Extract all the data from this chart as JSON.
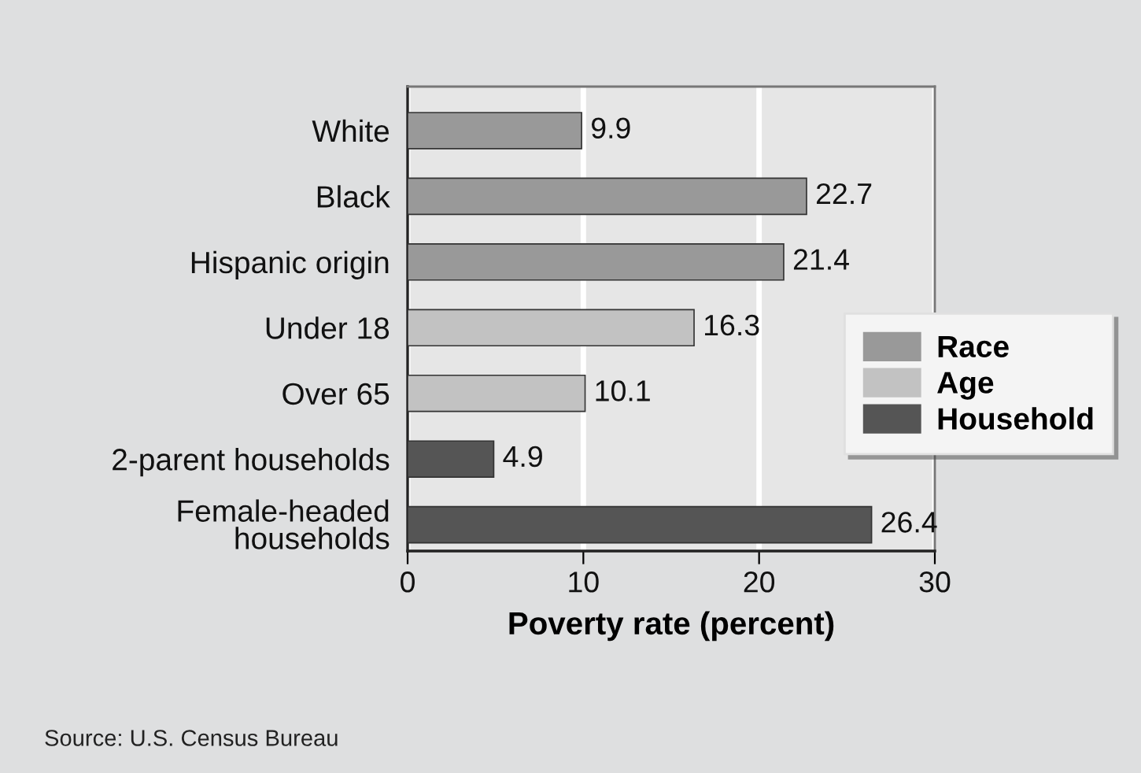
{
  "chart_data": {
    "type": "bar",
    "orientation": "horizontal",
    "categories": [
      "White",
      "Black",
      "Hispanic origin",
      "Under 18",
      "Over 65",
      "2-parent households",
      "Female-headed\nhouseholds"
    ],
    "series": [
      {
        "name": "Race",
        "color": "#999999",
        "values": [
          9.9,
          22.7,
          21.4,
          null,
          null,
          null,
          null
        ]
      },
      {
        "name": "Age",
        "color": "#c2c2c2",
        "values": [
          null,
          null,
          null,
          16.3,
          10.1,
          null,
          null
        ]
      },
      {
        "name": "Household",
        "color": "#555555",
        "values": [
          null,
          null,
          null,
          null,
          null,
          4.9,
          26.4
        ]
      }
    ],
    "xlabel": "Poverty rate (percent)",
    "xlim": [
      0,
      30
    ],
    "xticks": [
      0,
      10,
      20,
      30
    ],
    "grid": "x",
    "legend": "right",
    "data_labels": true,
    "annotations": [
      "Source: U.S. Census Bureau"
    ]
  }
}
